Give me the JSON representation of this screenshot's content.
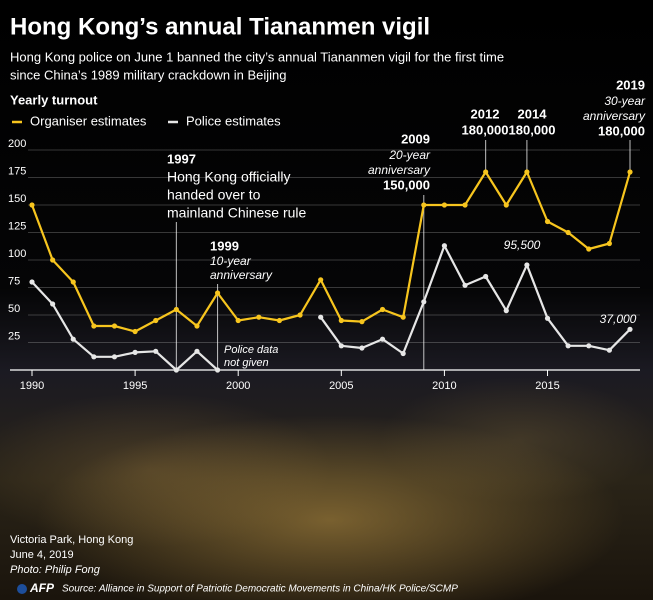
{
  "chart_data": {
    "type": "line",
    "title": "Hong Kong’s annual Tiananmen vigil",
    "subtitle": [
      "Hong Kong police on June 1 banned the city’s annual Tiananmen vigil for the first time",
      "since China’s 1989 military crackdown in Beijing"
    ],
    "y_label": "Yearly turnout",
    "x": [
      1990,
      1991,
      1992,
      1993,
      1994,
      1995,
      1996,
      1997,
      1998,
      1999,
      2000,
      2001,
      2002,
      2003,
      2004,
      2005,
      2006,
      2007,
      2008,
      2009,
      2010,
      2011,
      2012,
      2013,
      2014,
      2015,
      2016,
      2017,
      2018,
      2019
    ],
    "series": [
      {
        "name": "Organiser estimates",
        "color": "#f7c51e",
        "values": [
          150,
          100,
          80,
          40,
          40,
          35,
          45,
          55,
          40,
          70,
          45,
          48,
          45,
          50,
          82,
          45,
          44,
          55,
          48,
          150,
          150,
          150,
          180,
          150,
          180,
          135,
          125,
          110,
          115,
          180
        ],
        "value_labels": [
          null,
          null,
          null,
          null,
          null,
          null,
          null,
          null,
          null,
          null,
          null,
          null,
          null,
          null,
          null,
          null,
          null,
          null,
          null,
          "150,000",
          null,
          null,
          "180,000",
          null,
          "180,000",
          null,
          null,
          null,
          null,
          "180,000"
        ]
      },
      {
        "name": "Police estimates",
        "color": "#e6e6e6",
        "values": [
          80,
          60,
          28,
          12,
          12,
          16,
          17,
          0,
          17,
          0,
          null,
          null,
          null,
          null,
          48,
          22,
          20,
          28,
          15,
          62,
          113,
          77,
          85,
          54,
          95.5,
          47,
          22,
          22,
          18,
          37
        ],
        "value_labels": [
          null,
          null,
          null,
          null,
          null,
          null,
          null,
          null,
          null,
          null,
          null,
          null,
          null,
          null,
          null,
          null,
          null,
          null,
          null,
          null,
          null,
          null,
          null,
          null,
          "95,500",
          null,
          null,
          null,
          null,
          "37,000"
        ]
      }
    ],
    "xlim": [
      1990,
      2019
    ],
    "xticks": [
      1990,
      1995,
      2000,
      2005,
      2010,
      2015
    ],
    "ylim": [
      0,
      200
    ],
    "yticks": [
      25,
      50,
      75,
      100,
      125,
      150,
      175,
      200
    ],
    "grid": true,
    "annotations": [
      {
        "x": 1997,
        "title": "1997",
        "note": [
          "Hong Kong officially",
          "handed over to",
          "mainland Chinese rule"
        ]
      },
      {
        "x": 1999,
        "title": "1999",
        "note": [
          "10-year",
          "anniversary"
        ]
      },
      {
        "x": 2009,
        "title": "2009",
        "note": [
          "20-year",
          "anniversary"
        ]
      },
      {
        "x": 2012,
        "title": "2012"
      },
      {
        "x": 2014,
        "title": "2014"
      },
      {
        "x": 2019,
        "title": "2019",
        "note": [
          "30-year",
          "anniversary"
        ]
      }
    ],
    "police_note": [
      "Police data",
      "not given"
    ],
    "photo_caption": [
      "Victoria Park, Hong Kong",
      "June 4, 2019",
      "Photo: Philip Fong"
    ],
    "logo": "AFP",
    "source": "Source: Alliance in Support of Patriotic Democratic Movements in China/HK Police/SCMP"
  }
}
